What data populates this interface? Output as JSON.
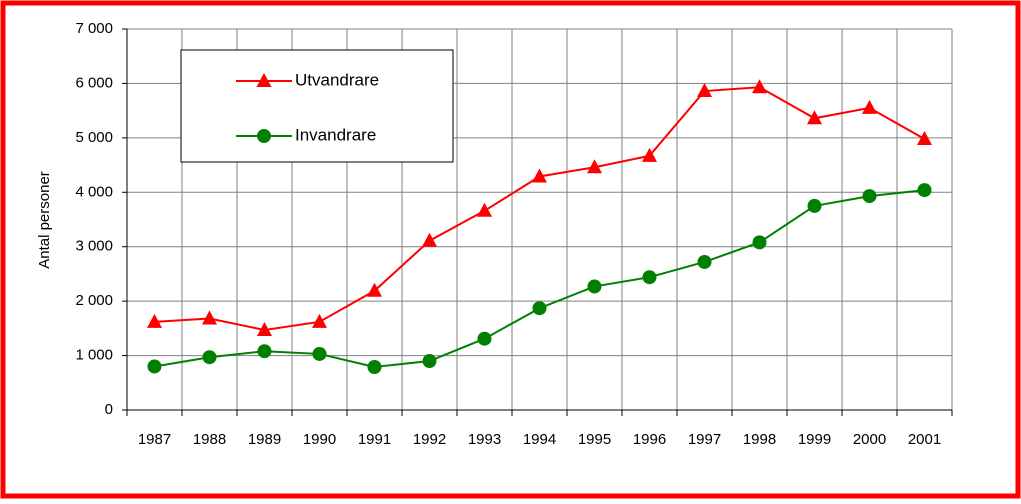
{
  "chart_data": {
    "type": "line",
    "y_label": "Antal personer",
    "categories": [
      "1987",
      "1988",
      "1989",
      "1990",
      "1991",
      "1992",
      "1993",
      "1994",
      "1995",
      "1996",
      "1997",
      "1998",
      "1999",
      "2000",
      "2001"
    ],
    "series": [
      {
        "name": "Utvandrare",
        "color": "#ff0000",
        "marker": "triangle",
        "values": [
          1620,
          1680,
          1470,
          1620,
          2190,
          3110,
          3660,
          4290,
          4460,
          4670,
          5860,
          5930,
          5360,
          5550,
          4980
        ]
      },
      {
        "name": "Invandrare",
        "color": "#008000",
        "marker": "circle",
        "values": [
          800,
          970,
          1080,
          1030,
          790,
          900,
          1310,
          1870,
          2270,
          2440,
          2720,
          3080,
          3750,
          3930,
          4040
        ]
      }
    ],
    "ylim": [
      0,
      7000
    ],
    "yticks": [
      0,
      {
        "value": 1000,
        "label": "1 000"
      },
      {
        "value": 2000,
        "label": "2 000"
      },
      {
        "value": 3000,
        "label": "3 000"
      },
      {
        "value": 4000,
        "label": "4 000"
      },
      {
        "value": 5000,
        "label": "5 000"
      },
      {
        "value": 6000,
        "label": "6 000"
      },
      {
        "value": 7000,
        "label": "7 000"
      }
    ],
    "grid": true,
    "legend": "upper left"
  }
}
